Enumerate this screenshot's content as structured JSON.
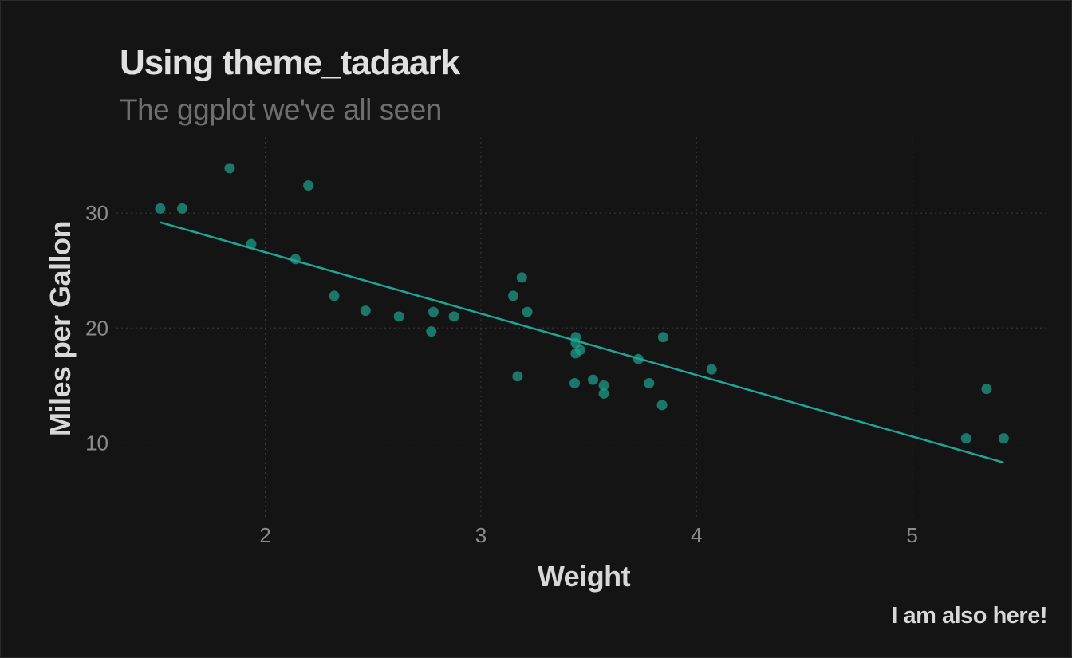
{
  "chart_data": {
    "type": "scatter",
    "title": "Using theme_tadaark",
    "subtitle": "The ggplot we've all seen",
    "xlabel": "Weight",
    "ylabel": "Miles per Gallon",
    "caption": "I am also here!",
    "xlim": [
      1.31,
      5.63
    ],
    "ylim": [
      3.3,
      36.6
    ],
    "x_ticks": [
      2,
      3,
      4,
      5
    ],
    "y_ticks": [
      10,
      20,
      30
    ],
    "grid": true,
    "legend": "none",
    "colors": {
      "background": "#141414",
      "points": "#1f9e89",
      "line": "#1fa595",
      "grid": "#3a3a3a",
      "tick_labels": "#8c8c8c",
      "title": "#e0e0e0",
      "subtitle": "#6e6e6e"
    },
    "points": {
      "x": [
        1.513,
        1.615,
        1.835,
        1.935,
        2.14,
        2.2,
        2.32,
        2.465,
        2.62,
        2.77,
        2.78,
        2.875,
        3.15,
        3.17,
        3.19,
        3.215,
        3.435,
        3.44,
        3.44,
        3.44,
        3.46,
        3.52,
        3.57,
        3.57,
        3.73,
        3.78,
        3.84,
        3.845,
        4.07,
        5.25,
        5.345,
        5.424
      ],
      "y": [
        30.4,
        30.4,
        33.9,
        27.3,
        26.0,
        32.4,
        22.8,
        21.5,
        21.0,
        19.7,
        21.4,
        21.0,
        22.8,
        15.8,
        24.4,
        21.4,
        15.2,
        19.2,
        18.7,
        17.8,
        18.1,
        15.5,
        15.0,
        14.3,
        17.3,
        15.2,
        13.3,
        19.2,
        16.4,
        10.4,
        14.7,
        10.4
      ]
    },
    "trend_line": {
      "x": [
        1.513,
        5.424
      ],
      "y": [
        29.2,
        8.3
      ]
    }
  }
}
